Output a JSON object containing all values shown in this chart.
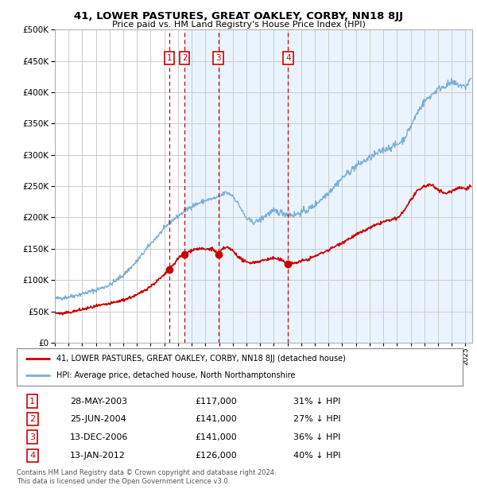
{
  "title": "41, LOWER PASTURES, GREAT OAKLEY, CORBY, NN18 8JJ",
  "subtitle": "Price paid vs. HM Land Registry's House Price Index (HPI)",
  "red_label": "41, LOWER PASTURES, GREAT OAKLEY, CORBY, NN18 8JJ (detached house)",
  "blue_label": "HPI: Average price, detached house, North Northamptonshire",
  "sales": [
    {
      "num": 1,
      "date": "28-MAY-2003",
      "price": "£117,000",
      "hpi": "31% ↓ HPI",
      "year": 2003.38
    },
    {
      "num": 2,
      "date": "25-JUN-2004",
      "price": "£141,000",
      "hpi": "27% ↓ HPI",
      "year": 2004.48
    },
    {
      "num": 3,
      "date": "13-DEC-2006",
      "price": "£141,000",
      "hpi": "36% ↓ HPI",
      "year": 2006.95
    },
    {
      "num": 4,
      "date": "13-JAN-2012",
      "price": "£126,000",
      "hpi": "40% ↓ HPI",
      "year": 2012.04
    }
  ],
  "sale_prices": [
    117000,
    141000,
    141000,
    126000
  ],
  "footer": "Contains HM Land Registry data © Crown copyright and database right 2024.\nThis data is licensed under the Open Government Licence v3.0.",
  "ylim": [
    0,
    500000
  ],
  "yticks": [
    0,
    50000,
    100000,
    150000,
    200000,
    250000,
    300000,
    350000,
    400000,
    450000,
    500000
  ],
  "xlim_start": 1995.0,
  "xlim_end": 2025.5,
  "red_color": "#cc0000",
  "blue_color": "#7aaed4",
  "shade_color": "#ddeeff",
  "grid_color": "#cccccc",
  "bg_color": "#ffffff",
  "shade_start": 2004.48,
  "shade_end": 2025.5
}
